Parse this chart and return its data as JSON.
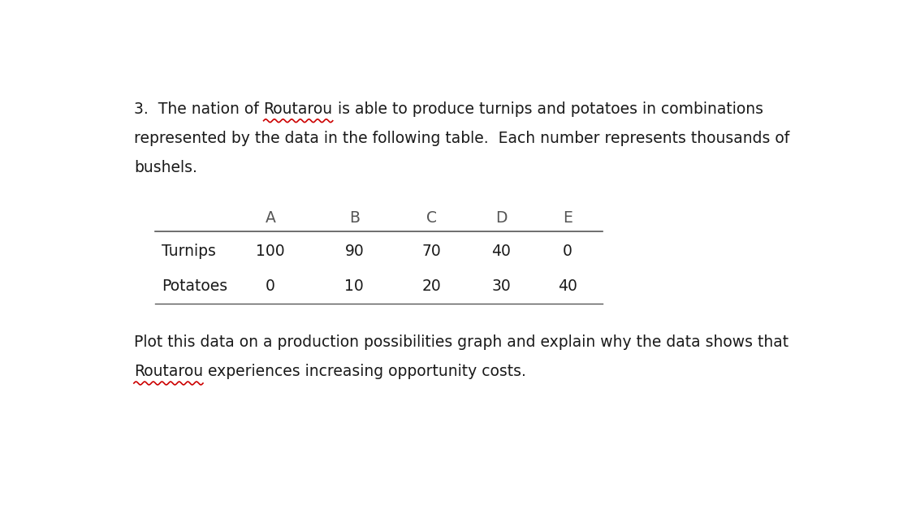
{
  "bg_color": "#ffffff",
  "para1_line1": "3.  The nation of Routarou is able to produce turnips and potatoes in combinations",
  "para1_line1_prefix": "3.  The nation of ",
  "para1_line1_word": "Routarou",
  "para1_line1_suffix": " is able to produce turnips and potatoes in combinations",
  "para1_line2": "represented by the data in the following table.  Each number represents thousands of",
  "para1_line3": "bushels.",
  "table_headers": [
    "A",
    "B",
    "C",
    "D",
    "E"
  ],
  "row1_label": "Turnips",
  "row1_values": [
    100,
    90,
    70,
    40,
    0
  ],
  "row2_label": "Potatoes",
  "row2_values": [
    0,
    10,
    20,
    30,
    40
  ],
  "para2_line1": "Plot this data on a production possibilities graph and explain why the data shows that",
  "para2_line2_word": "Routarou",
  "para2_line2_suffix": " experiences increasing opportunity costs.",
  "font_size_body": 13.5,
  "font_family": "DejaVu Sans",
  "wavy_color": "#cc0000",
  "text_color": "#1a1a1a",
  "header_color": "#555555",
  "line_color": "#555555"
}
